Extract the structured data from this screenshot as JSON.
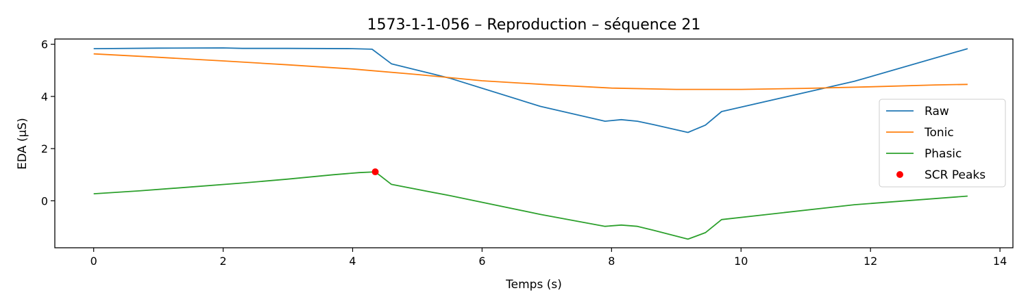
{
  "chart_data": {
    "type": "line",
    "title": "1573-1-1-056 – Reproduction – séquence 21",
    "xlabel": "Temps (s)",
    "ylabel": "EDA (µS)",
    "xlim": [
      -0.6,
      14.2
    ],
    "ylim": [
      -1.8,
      6.2
    ],
    "xticks": [
      0,
      2,
      4,
      6,
      8,
      10,
      12,
      14
    ],
    "yticks": [
      0,
      2,
      4,
      6
    ],
    "grid": false,
    "legend_position": "center-right",
    "series": [
      {
        "name": "Raw",
        "color": "#1f77b4",
        "x": [
          0,
          1.0,
          2.0,
          2.3,
          3.0,
          4.0,
          4.3,
          4.6,
          5.5,
          6.9,
          7.9,
          8.15,
          8.4,
          8.65,
          9.18,
          9.45,
          9.7,
          11.75,
          13.5
        ],
        "y": [
          5.83,
          5.85,
          5.86,
          5.84,
          5.84,
          5.83,
          5.81,
          5.25,
          4.7,
          3.62,
          3.05,
          3.11,
          3.05,
          2.92,
          2.62,
          2.9,
          3.42,
          4.58,
          5.83
        ]
      },
      {
        "name": "Tonic",
        "color": "#ff7f0e",
        "x": [
          0,
          1,
          2,
          3,
          4,
          5,
          6,
          7,
          8,
          9,
          10,
          11,
          12,
          13,
          13.5
        ],
        "y": [
          5.63,
          5.5,
          5.36,
          5.21,
          5.05,
          4.84,
          4.6,
          4.45,
          4.32,
          4.27,
          4.27,
          4.31,
          4.37,
          4.44,
          4.46
        ]
      },
      {
        "name": "Phasic",
        "color": "#2ca02c",
        "x": [
          0,
          0.7,
          1.5,
          2.3,
          3.0,
          3.7,
          4.1,
          4.35,
          4.6,
          5.5,
          6.9,
          7.9,
          8.15,
          8.4,
          8.65,
          9.18,
          9.45,
          9.7,
          11.75,
          13.5
        ],
        "y": [
          0.27,
          0.38,
          0.53,
          0.68,
          0.83,
          1.0,
          1.08,
          1.11,
          0.63,
          0.2,
          -0.52,
          -0.98,
          -0.93,
          -0.98,
          -1.13,
          -1.47,
          -1.22,
          -0.72,
          -0.15,
          0.18
        ]
      },
      {
        "name": "SCR Peaks",
        "color": "#ff0000",
        "marker": "dot",
        "x": [
          4.35
        ],
        "y": [
          1.11
        ]
      }
    ]
  }
}
